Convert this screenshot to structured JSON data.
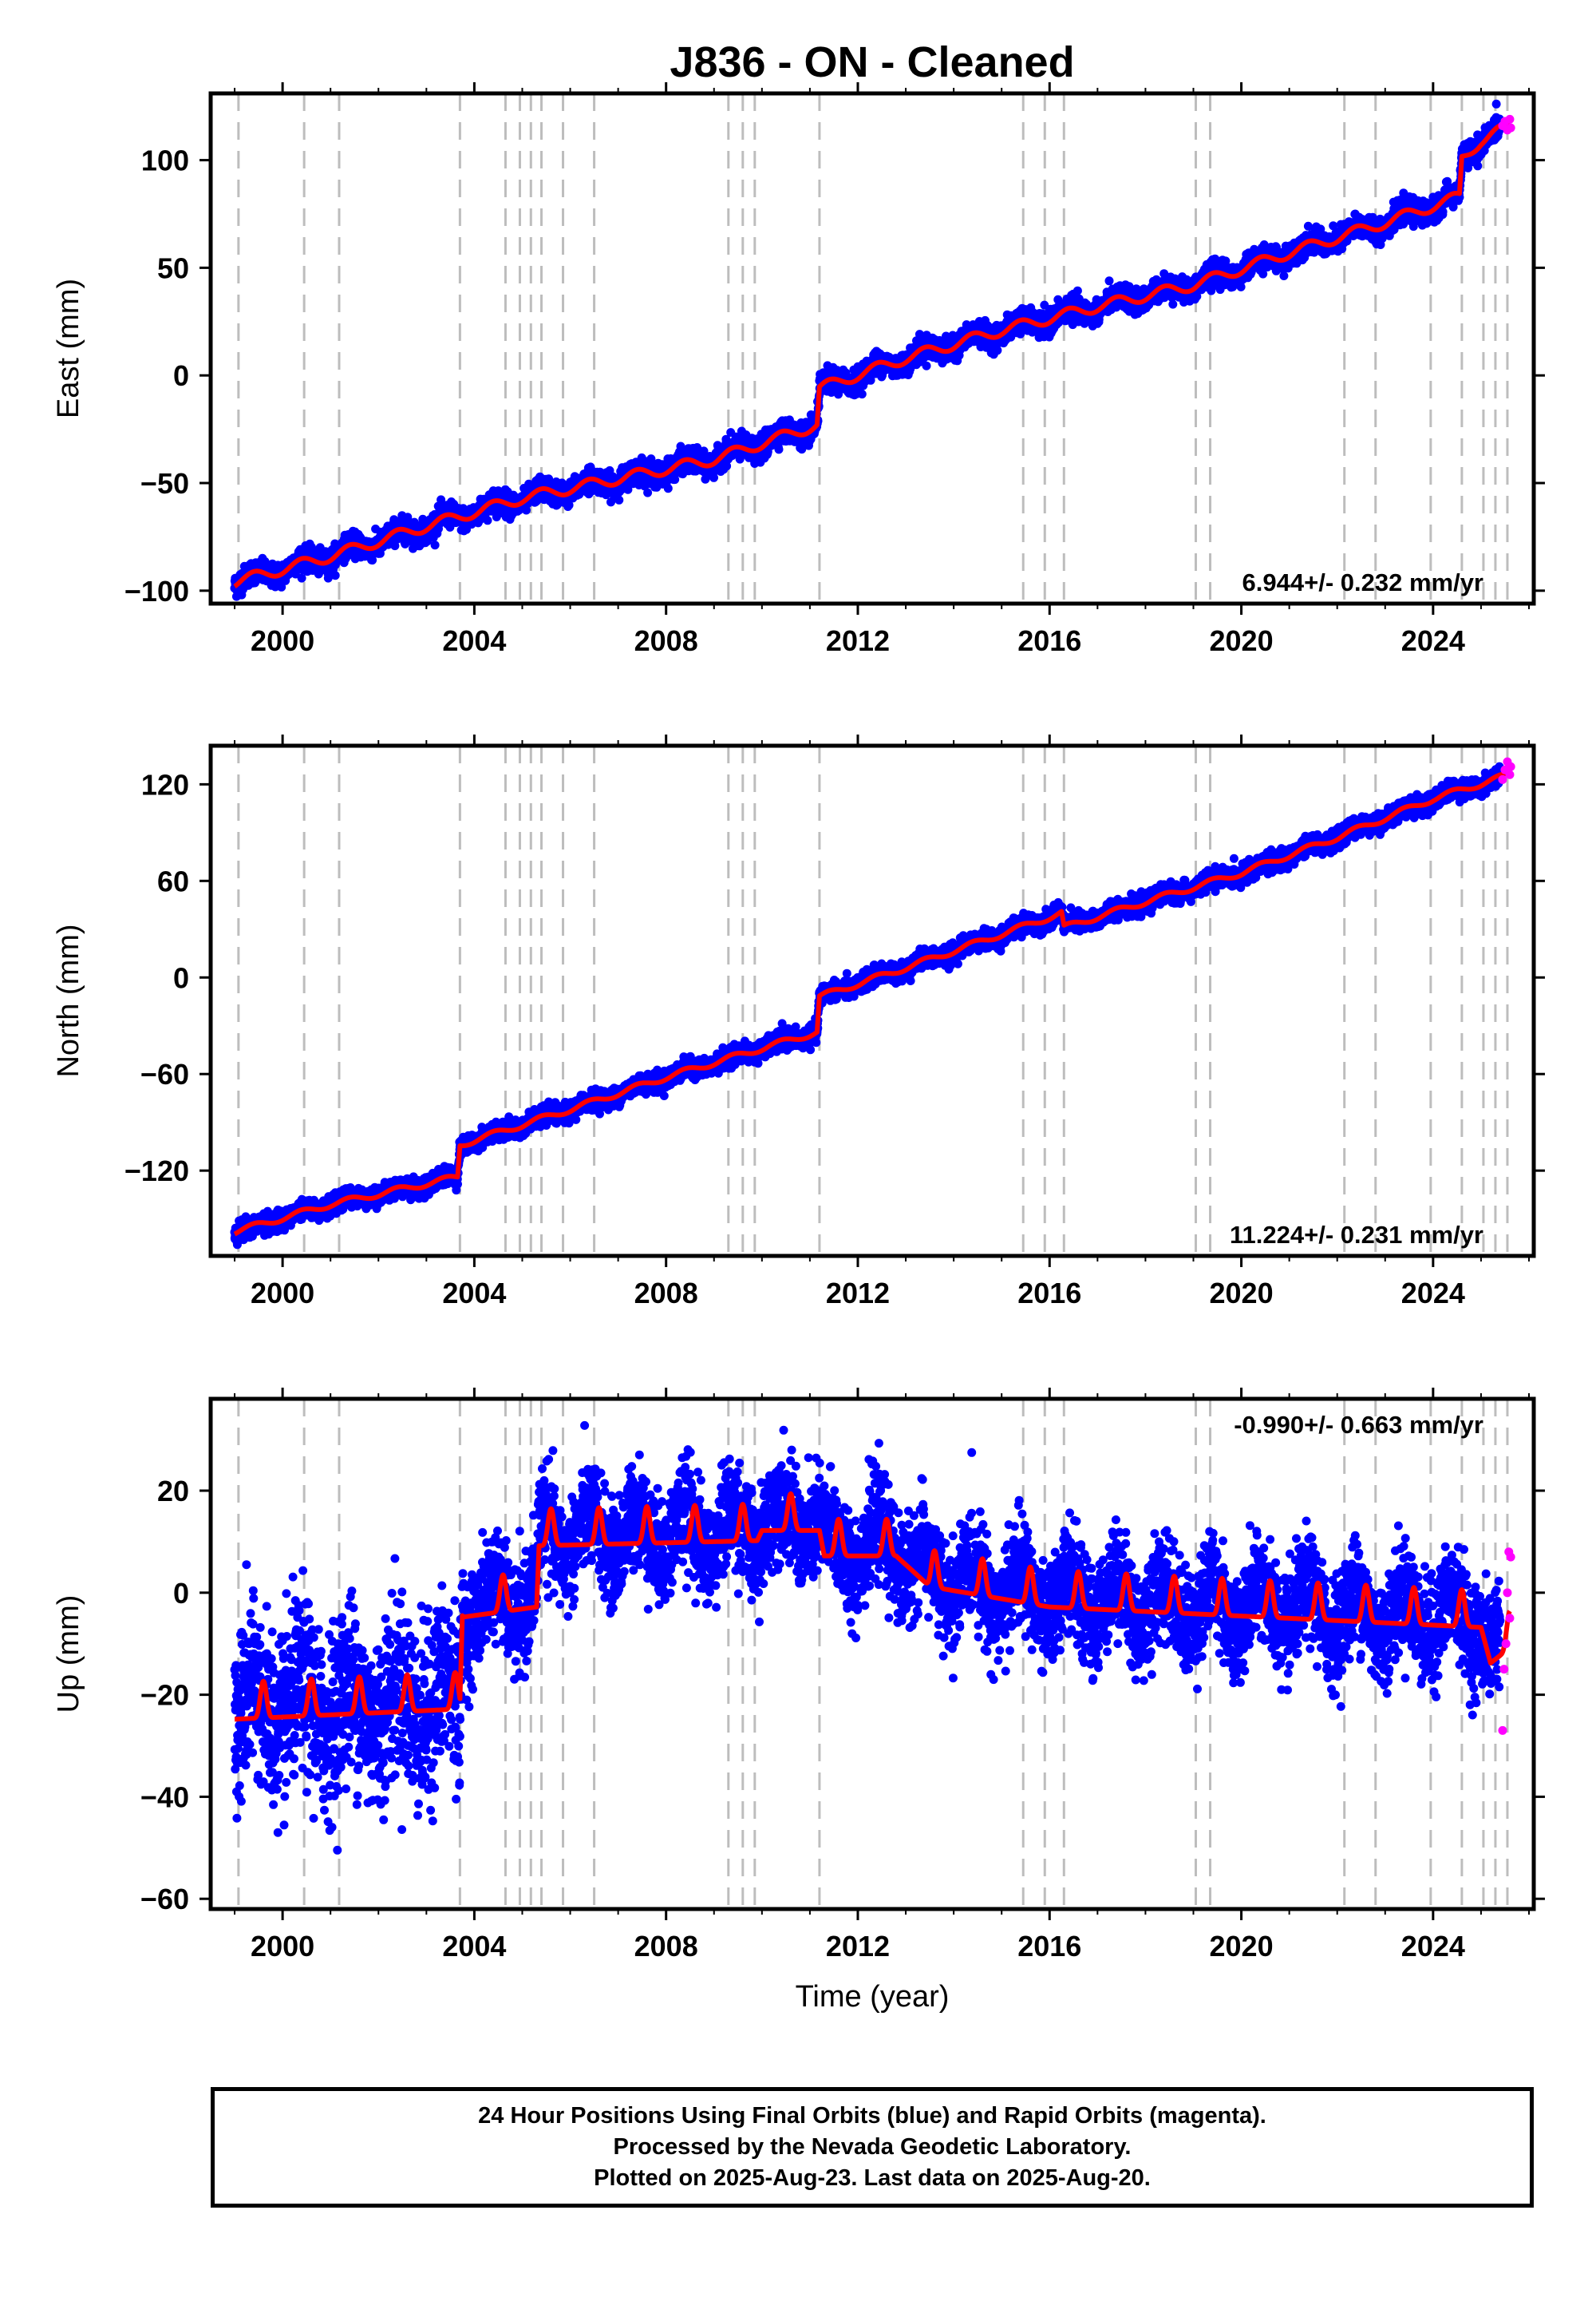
{
  "title": "J836  - ON - Cleaned",
  "colors": {
    "final": "#0000ff",
    "rapid": "#ff00ff",
    "model": "#ff0000",
    "event_line": "#bdbdbd"
  },
  "event_lines": [
    1999.08,
    2000.45,
    2001.18,
    2003.7,
    2004.65,
    2004.95,
    2005.18,
    2005.4,
    2005.85,
    2006.5,
    2009.3,
    2009.6,
    2009.85,
    2011.2,
    2015.45,
    2015.9,
    2016.3,
    2019.05,
    2019.35,
    2022.15,
    2022.8,
    2023.95,
    2024.6,
    2025.05,
    2025.3,
    2025.55
  ],
  "chart_data": [
    {
      "type": "scatter",
      "name": "east",
      "ylabel": "East (mm)",
      "xlabel": "",
      "xlim": [
        1998.5,
        2026.1
      ],
      "ylim": [
        -106,
        131
      ],
      "xticks": [
        2000,
        2004,
        2008,
        2012,
        2016,
        2020,
        2024
      ],
      "yticks": [
        -100,
        -50,
        0,
        50,
        100
      ],
      "rate_label": "6.944+/- 0.232 mm/yr",
      "rate_position": "bottom-right",
      "trend_knots": {
        "x": [
          1999.0,
          2001.0,
          2003.0,
          2005.0,
          2007.0,
          2009.0,
          2011.15,
          2011.2,
          2013.0,
          2015.0,
          2017.0,
          2019.0,
          2021.0,
          2023.0,
          2024.55,
          2024.6,
          2025.0,
          2025.6
        ],
        "y": [
          -96,
          -84,
          -70,
          -57,
          -48,
          -39,
          -23,
          -6,
          8,
          21,
          32,
          42,
          57,
          71,
          83,
          101,
          109,
          116
        ]
      },
      "seasonal_amplitude": 2.5,
      "scatter_sd": 2.6,
      "x_range_final": [
        1999.0,
        2025.4
      ],
      "rapid_points": {
        "x": [
          2025.45,
          2025.5,
          2025.55,
          2025.6,
          2025.62
        ],
        "y": [
          116,
          118,
          114,
          119,
          115
        ]
      }
    },
    {
      "type": "scatter",
      "name": "north",
      "ylabel": "North (mm)",
      "xlabel": "",
      "xlim": [
        1998.5,
        2026.1
      ],
      "ylim": [
        -173,
        144
      ],
      "xticks": [
        2000,
        2004,
        2008,
        2012,
        2016,
        2020,
        2024
      ],
      "yticks": [
        -120,
        -60,
        0,
        60,
        120
      ],
      "rate_label": "11.224+/- 0.231 mm/yr",
      "rate_position": "bottom-right",
      "trend_knots": {
        "x": [
          1999.0,
          2001.0,
          2003.65,
          2003.7,
          2006.0,
          2008.0,
          2010.0,
          2011.15,
          2011.2,
          2013.0,
          2016.25,
          2016.3,
          2018.0,
          2020.0,
          2022.0,
          2024.0,
          2025.6
        ],
        "y": [
          -158,
          -141,
          -124,
          -104,
          -82,
          -62,
          -44,
          -34,
          -12,
          6,
          40,
          31,
          47,
          65,
          87,
          111,
          126
        ]
      },
      "seasonal_amplitude": 1.8,
      "scatter_sd": 2.8,
      "x_range_final": [
        1999.0,
        2025.4
      ],
      "rapid_points": {
        "x": [
          2025.45,
          2025.5,
          2025.55,
          2025.6,
          2025.62
        ],
        "y": [
          123,
          129,
          134,
          126,
          131
        ]
      }
    },
    {
      "type": "scatter",
      "name": "up",
      "ylabel": "Up (mm)",
      "xlabel": "Time (year)",
      "xlim": [
        1998.5,
        2026.1
      ],
      "ylim": [
        -62,
        38
      ],
      "xticks": [
        2000,
        2004,
        2008,
        2012,
        2016,
        2020,
        2024
      ],
      "yticks": [
        -60,
        -40,
        -20,
        0,
        20
      ],
      "rate_label": "-0.990+/- 0.663 mm/yr",
      "rate_position": "top-right",
      "trend_knots": {
        "x": [
          1999.0,
          2003.7,
          2003.75,
          2005.3,
          2005.35,
          2009.9,
          2010.0,
          2011.2,
          2011.3,
          2012.8,
          2013.5,
          2016.0,
          2025.0,
          2025.2,
          2025.6
        ],
        "y": [
          -23,
          -21,
          -3,
          -1,
          11,
          12,
          14,
          14,
          9,
          9,
          3,
          -1,
          -5,
          -12,
          -9
        ]
      },
      "seasonal_amplitude": 4.5,
      "scatter_sd": 5.0,
      "scatter_sd_early": 8.5,
      "x_range_final": [
        1999.0,
        2025.4
      ],
      "rapid_points": {
        "x": [
          2025.45,
          2025.48,
          2025.52,
          2025.55,
          2025.58,
          2025.6,
          2025.62
        ],
        "y": [
          -27,
          -15,
          -10,
          0,
          8,
          -5,
          7
        ]
      }
    }
  ],
  "footer": {
    "line1": "24 Hour Positions Using Final Orbits (blue) and Rapid Orbits (magenta).",
    "line2": "Processed by the Nevada Geodetic Laboratory.",
    "line3": "Plotted on 2025-Aug-23. Last data on 2025-Aug-20."
  }
}
